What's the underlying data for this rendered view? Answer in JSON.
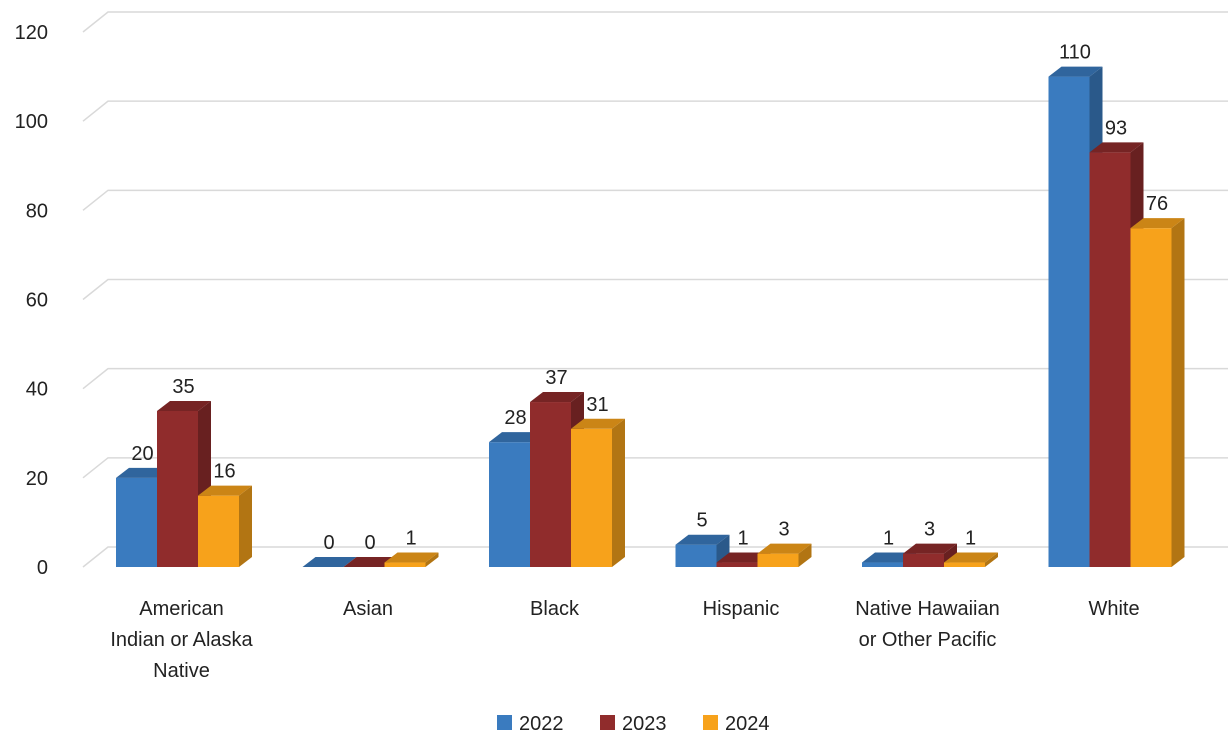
{
  "chart_data": {
    "type": "bar",
    "title": "",
    "xlabel": "",
    "ylabel": "",
    "ylim": [
      0,
      120
    ],
    "yticks": [
      0,
      20,
      40,
      60,
      80,
      100,
      120
    ],
    "grid": true,
    "legend_position": "bottom-center",
    "categories": [
      [
        "American",
        "Indian or Alaska",
        "Native"
      ],
      [
        "Asian"
      ],
      [
        "Black"
      ],
      [
        "Hispanic"
      ],
      [
        "Native Hawaiian",
        "or Other Pacific"
      ],
      [
        "White"
      ]
    ],
    "series": [
      {
        "name": "2022",
        "color": "#3a7bbf",
        "values": [
          20,
          0,
          28,
          5,
          1,
          110
        ]
      },
      {
        "name": "2023",
        "color": "#902c2c",
        "values": [
          35,
          0,
          37,
          1,
          3,
          93
        ]
      },
      {
        "name": "2024",
        "color": "#f7a21b",
        "values": [
          16,
          1,
          31,
          3,
          1,
          76
        ]
      }
    ]
  }
}
